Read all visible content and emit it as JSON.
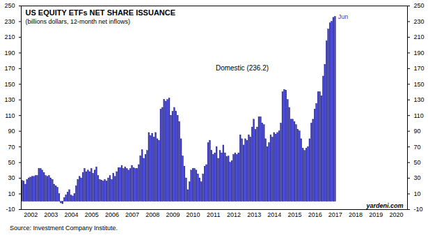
{
  "chart_data": {
    "type": "bar",
    "title": "US EQUITY ETFs NET SHARE ISSUANCE",
    "subtitle": "(billions dollars, 12-month net inflows)",
    "annotations": [
      "Domestic (236.2)",
      "Jun",
      "yardeni.com"
    ],
    "source": "Source: Investment Company Institute.",
    "color": "#3a3acc",
    "categories": [
      null,
      null,
      null,
      null,
      null,
      "2002",
      null,
      null,
      null,
      null,
      null,
      null,
      null,
      null,
      null,
      null,
      null,
      "2003",
      null,
      null,
      null,
      null,
      null,
      null,
      null,
      null,
      null,
      null,
      null,
      "2004",
      null,
      null,
      null,
      null,
      null,
      null,
      null,
      null,
      null,
      null,
      null,
      "2005",
      null,
      null,
      null,
      null,
      null,
      null,
      null,
      null,
      null,
      null,
      null,
      "2006",
      null,
      null,
      null,
      null,
      null,
      null,
      null,
      null,
      null,
      null,
      null,
      "2007",
      null,
      null,
      null,
      null,
      null,
      null,
      null,
      null,
      null,
      null,
      null,
      "2008",
      null,
      null,
      null,
      null,
      null,
      null,
      null,
      null,
      null,
      null,
      null,
      "2009",
      null,
      null,
      null,
      null,
      null,
      null,
      null,
      null,
      null,
      null,
      null,
      "2010",
      null,
      null,
      null,
      null,
      null,
      null,
      null,
      null,
      null,
      null,
      null,
      "2011",
      null,
      null,
      null,
      null,
      null,
      null,
      null,
      null,
      null,
      null,
      null,
      "2012",
      null,
      null,
      null,
      null,
      null,
      null,
      null,
      null,
      null,
      null,
      null,
      "2013",
      null,
      null,
      null,
      null,
      null,
      null,
      null,
      null,
      null,
      null,
      null,
      "2014",
      null,
      null,
      null,
      null,
      null,
      null,
      null,
      null,
      null,
      null,
      null,
      "2015",
      null,
      null,
      null,
      null,
      null,
      null,
      null,
      null,
      null,
      null,
      null,
      "2016",
      null,
      null,
      null,
      null,
      null,
      null,
      null,
      null,
      null,
      null,
      null,
      "2017",
      null,
      null,
      null,
      null,
      null,
      null,
      null,
      null,
      null,
      null,
      null,
      "2018",
      null,
      null,
      null,
      null,
      null,
      null,
      null,
      null,
      null,
      null,
      null,
      "2019",
      null,
      null,
      null,
      null,
      null,
      null,
      null,
      null,
      null,
      null,
      null,
      "2020",
      null,
      null,
      null,
      null,
      null,
      null
    ],
    "values": [
      27,
      26,
      22,
      28,
      30,
      31,
      32,
      32,
      33,
      33,
      42,
      42,
      40,
      37,
      33,
      32,
      33,
      30,
      28,
      22,
      20,
      18,
      10,
      -2,
      -3,
      5,
      8,
      12,
      15,
      8,
      7,
      10,
      20,
      28,
      32,
      30,
      37,
      42,
      38,
      40,
      38,
      42,
      36,
      40,
      44,
      33,
      28,
      27,
      26,
      28,
      26,
      30,
      33,
      28,
      36,
      32,
      38,
      43,
      43,
      46,
      42,
      44,
      42,
      40,
      42,
      46,
      43,
      42,
      42,
      47,
      58,
      66,
      55,
      60,
      65,
      88,
      84,
      87,
      82,
      88,
      80,
      78,
      118,
      120,
      130,
      128,
      130,
      132,
      110,
      115,
      120,
      115,
      110,
      102,
      80,
      58,
      45,
      30,
      15,
      25,
      40,
      42,
      42,
      40,
      35,
      30,
      25,
      35,
      45,
      47,
      75,
      78,
      65,
      60,
      62,
      70,
      55,
      65,
      62,
      72,
      62,
      57,
      58,
      50,
      52,
      60,
      62,
      60,
      62,
      85,
      80,
      72,
      80,
      78,
      85,
      82,
      95,
      105,
      92,
      95,
      108,
      108,
      100,
      98,
      80,
      70,
      75,
      85,
      82,
      88,
      86,
      88,
      90,
      100,
      140,
      143,
      142,
      130,
      120,
      105,
      105,
      102,
      98,
      92,
      90,
      80,
      68,
      65,
      68,
      70,
      80,
      100,
      105,
      118,
      125,
      140,
      140,
      135,
      160,
      175,
      205,
      220,
      228,
      230,
      235,
      236.2,
      null,
      null,
      null,
      null,
      null,
      null,
      null,
      null,
      null,
      null,
      null,
      null,
      null,
      null,
      null,
      null,
      null,
      null,
      null,
      null,
      null,
      null,
      null,
      null,
      null,
      null,
      null,
      null,
      null,
      null,
      null,
      null,
      null,
      null,
      null,
      null,
      null,
      null,
      null,
      null,
      null,
      null
    ],
    "ylim": [
      -10,
      250
    ],
    "yticks": [
      -10,
      10,
      30,
      50,
      70,
      90,
      110,
      130,
      150,
      170,
      190,
      210,
      230,
      250
    ],
    "grid": false
  }
}
